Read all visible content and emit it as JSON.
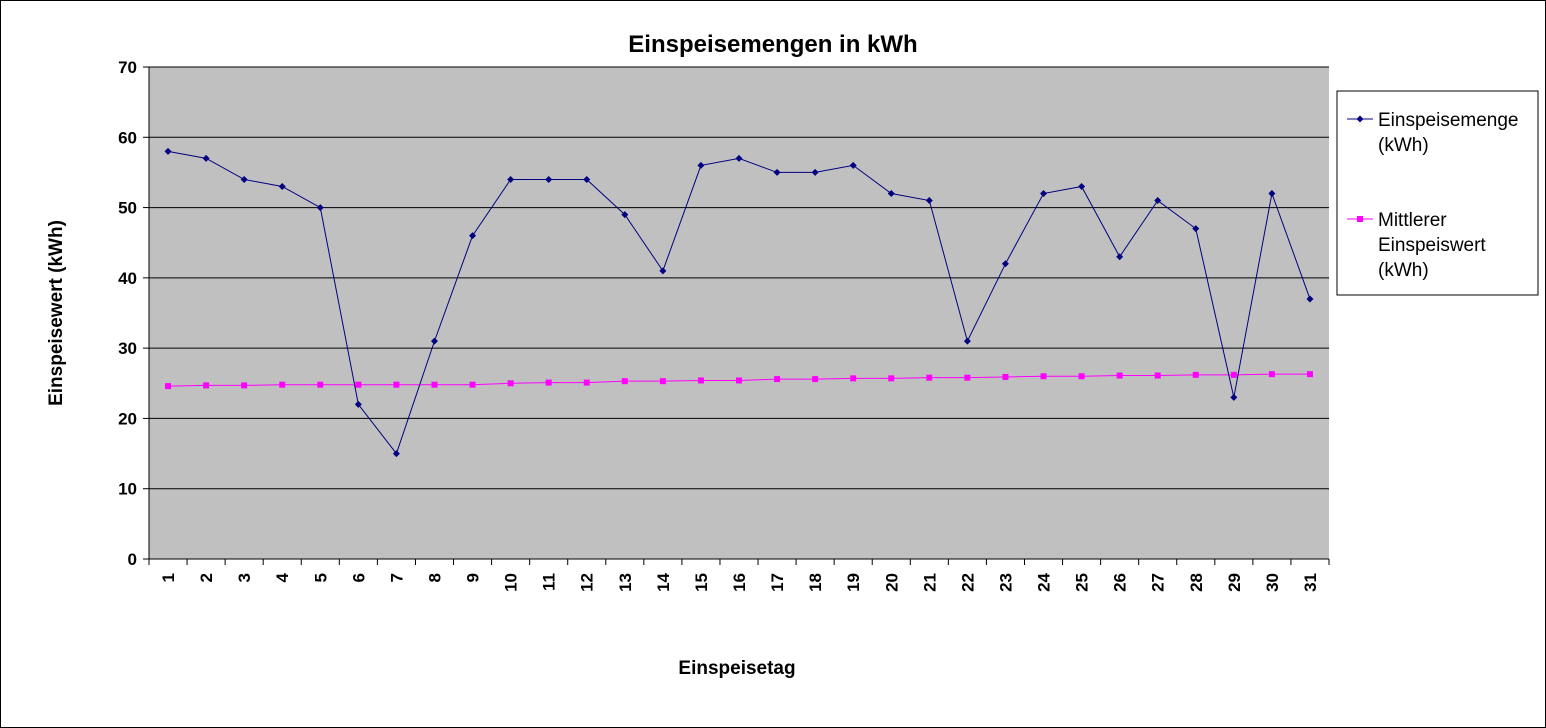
{
  "chart_data": {
    "type": "line",
    "title": "Einspeisemengen in kWh",
    "xlabel": "Einspeisetag",
    "ylabel": "Einspeisewert (kWh)",
    "ylim": [
      0,
      70
    ],
    "yticks": [
      0,
      10,
      20,
      30,
      40,
      50,
      60,
      70
    ],
    "categories": [
      "1",
      "2",
      "3",
      "4",
      "5",
      "6",
      "7",
      "8",
      "9",
      "10",
      "11",
      "12",
      "13",
      "14",
      "15",
      "16",
      "17",
      "18",
      "19",
      "20",
      "21",
      "22",
      "23",
      "24",
      "25",
      "26",
      "27",
      "28",
      "29",
      "30",
      "31"
    ],
    "grid": "horizontal",
    "plot_background": "#c0c0c0",
    "legend_position": "right",
    "series": [
      {
        "name_lines": [
          "Einspeisemenge",
          "(kWh)"
        ],
        "color": "#000080",
        "marker": "diamond",
        "values": [
          58,
          57,
          54,
          53,
          50,
          22,
          15,
          31,
          46,
          54,
          54,
          54,
          49,
          41,
          56,
          57,
          55,
          55,
          56,
          52,
          51,
          31,
          42,
          52,
          53,
          43,
          51,
          47,
          23,
          52,
          37
        ]
      },
      {
        "name_lines": [
          "Mittlerer",
          "Einspeiswert",
          "(kWh)"
        ],
        "color": "#ff00ff",
        "marker": "square",
        "values": [
          24.6,
          24.7,
          24.7,
          24.8,
          24.8,
          24.8,
          24.8,
          24.8,
          24.8,
          25.0,
          25.1,
          25.1,
          25.3,
          25.3,
          25.4,
          25.4,
          25.6,
          25.6,
          25.7,
          25.7,
          25.8,
          25.8,
          25.9,
          26.0,
          26.0,
          26.1,
          26.1,
          26.2,
          26.2,
          26.3,
          26.3
        ]
      }
    ]
  }
}
